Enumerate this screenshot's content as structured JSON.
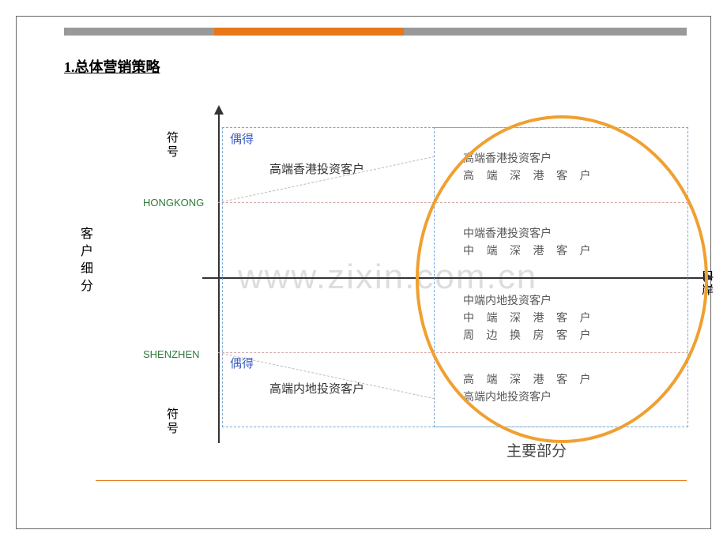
{
  "title": "1.总体营销策略",
  "yAxisLabel": "客户细分",
  "xAxisLabel": "口岸",
  "symbolTop": "符号",
  "symbolBottom": "符号",
  "labels": {
    "hongkong": "HONGKONG",
    "shenzhen": "SHENZHEN",
    "occasional1": "偶得",
    "occasional2": "偶得",
    "mainPart": "主要部分"
  },
  "quadrants": {
    "leftTop": "高端香港投资客户",
    "leftBottom": "高端内地投资客户",
    "rightTop": {
      "line1": "高端香港投资客户",
      "line2": "高 端 深 港 客 户"
    },
    "rightMid1": {
      "line1": "中端香港投资客户",
      "line2": "中 端 深 港 客 户"
    },
    "rightMid2": {
      "line1": "中端内地投资客户",
      "line2": "中 端 深 港 客 户",
      "line3": "周 边 换 房 客 户"
    },
    "rightBottom": {
      "line1": "高 端 深 港 客 户",
      "line2": "高端内地投资客户"
    }
  },
  "watermark": "www.zixin.com.cn",
  "colors": {
    "orange": "#e67817",
    "ellipse": "#f0a030",
    "green": "#2f7a3a",
    "blue": "#4060c0",
    "dashBlue": "#7aa8d4",
    "dashPink": "#d4a8a8",
    "gray": "#999"
  }
}
